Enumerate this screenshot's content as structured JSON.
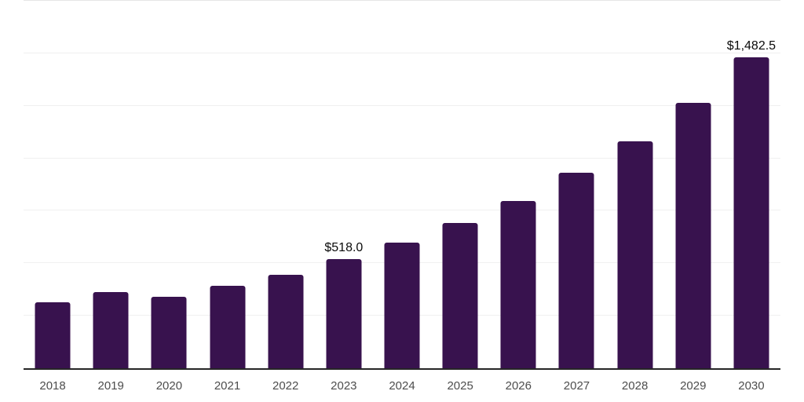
{
  "chart": {
    "bar_color": "#38124E",
    "grid_color": "#F0F0F0",
    "top_grid_color": "#E6E6E6",
    "axis_line_color": "#262626",
    "tick_label_color": "#4D4D4D",
    "value_label_color": "#0A0A0A"
  },
  "chart_data": {
    "type": "bar",
    "title": "",
    "xlabel": "",
    "ylabel": "",
    "categories": [
      "2018",
      "2019",
      "2020",
      "2021",
      "2022",
      "2023",
      "2024",
      "2025",
      "2026",
      "2027",
      "2028",
      "2029",
      "2030"
    ],
    "values": [
      314,
      363,
      339,
      392,
      445,
      518.0,
      597,
      691,
      798,
      930,
      1081,
      1264,
      1482.5
    ],
    "value_labels": [
      "",
      "",
      "",
      "",
      "",
      "$518.0",
      "",
      "",
      "",
      "",
      "",
      "",
      "$1,482.5"
    ],
    "ylim": [
      0,
      1750
    ],
    "gridline_interval": 250,
    "grid": true,
    "legend": false,
    "y_axis_tick_labels_visible": false
  }
}
